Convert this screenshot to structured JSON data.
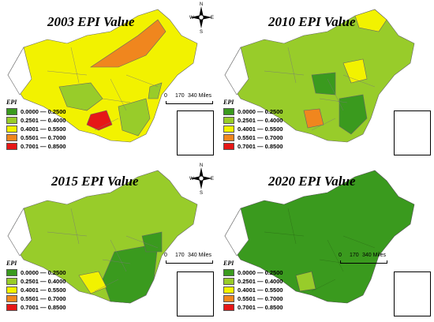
{
  "legend": {
    "header": "EPI",
    "classes": [
      {
        "label": "0.0000 — 0.2500",
        "color": "#3a9a1e"
      },
      {
        "label": "0.2501 — 0.4000",
        "color": "#98cc2a"
      },
      {
        "label": "0.4001 — 0.5500",
        "color": "#f2f200"
      },
      {
        "label": "0.5501 — 0.7000",
        "color": "#f0861e"
      },
      {
        "label": "0.7001 — 0.8500",
        "color": "#e61717"
      }
    ]
  },
  "scale": {
    "zero": "0",
    "mid": "170",
    "end": "340 Miles"
  },
  "compass": {
    "n": "N",
    "s": "S",
    "e": "E",
    "w": "W"
  },
  "panels": [
    {
      "title": "2003 EPI Value",
      "dominant_class": 2
    },
    {
      "title": "2010 EPI Value",
      "dominant_class": 1
    },
    {
      "title": "2015 EPI Value",
      "dominant_class": 1
    },
    {
      "title": "2020 EPI Value",
      "dominant_class": 0
    }
  ]
}
